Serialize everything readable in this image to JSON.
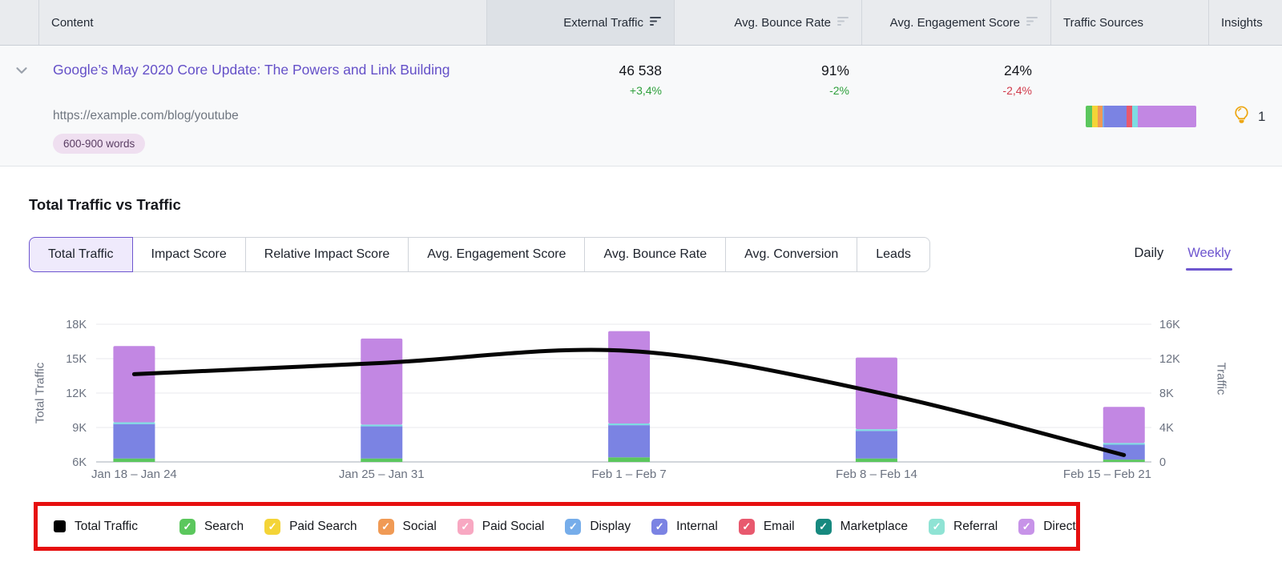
{
  "table": {
    "header": {
      "columns": [
        {
          "label": "Content",
          "align": "left",
          "sort_icon": "none",
          "active": false
        },
        {
          "label": "External Traffic",
          "align": "right",
          "sort_icon": "active",
          "active": true
        },
        {
          "label": "Avg. Bounce Rate",
          "align": "right",
          "sort_icon": "inactive",
          "active": false
        },
        {
          "label": "Avg. Engagement Score",
          "align": "right",
          "sort_icon": "inactive",
          "active": false
        },
        {
          "label": "Traffic Sources",
          "align": "left",
          "sort_icon": "none",
          "active": false
        },
        {
          "label": "Insights",
          "align": "left",
          "sort_icon": "none",
          "active": false
        }
      ]
    },
    "row": {
      "title": "Google’s May 2020 Core Update: The Powers and Link Building",
      "url": "https://example.com/blog/youtube",
      "word_count_badge": "600-900 words",
      "metrics": {
        "external_traffic": {
          "value": "46 538",
          "delta": "+3,4%",
          "delta_color": "#2ea03c"
        },
        "avg_bounce_rate": {
          "value": "91%",
          "delta": "-2%",
          "delta_color": "#2ea03c"
        },
        "avg_engagement_score": {
          "value": "24%",
          "delta": "-2,4%",
          "delta_color": "#d13b4b"
        }
      },
      "traffic_sources_bar": [
        {
          "name": "Search",
          "color": "#5bc75d",
          "pct": 6
        },
        {
          "name": "Paid Search",
          "color": "#f4d437",
          "pct": 5
        },
        {
          "name": "Social",
          "color": "#f09a55",
          "pct": 4.5
        },
        {
          "name": "Display",
          "color": "#76adea",
          "pct": 1.5
        },
        {
          "name": "Internal",
          "color": "#7b83e3",
          "pct": 20
        },
        {
          "name": "Email",
          "color": "#e8596e",
          "pct": 5
        },
        {
          "name": "Referral",
          "color": "#7edce2",
          "pct": 5
        },
        {
          "name": "Direct",
          "color": "#c287e3",
          "pct": 53
        }
      ],
      "insights": {
        "count": "1",
        "icon": "lightbulb-icon",
        "icon_color": "#eda611"
      }
    }
  },
  "chart_section": {
    "title": "Total Traffic vs Traffic",
    "metric_tabs": [
      "Total Traffic",
      "Impact Score",
      "Relative Impact Score",
      "Avg. Engagement Score",
      "Avg. Bounce Rate",
      "Avg. Conversion",
      "Leads"
    ],
    "selected_tab": "Total Traffic",
    "granularity": {
      "options": [
        "Daily",
        "Weekly"
      ],
      "selected": "Weekly"
    },
    "accent_color": "#6e56cf"
  },
  "chart_data": {
    "type": "bar+line",
    "categories": [
      "Jan 18 – Jan 24",
      "Jan 25 – Jan 31",
      "Feb 1 – Feb 7",
      "Feb 8 – Feb 14",
      "Feb 15 – Feb 21"
    ],
    "bar_base_k": 6,
    "stacked_bar_series": [
      {
        "name": "Search",
        "color": "#5bc75d",
        "values_k": [
          0.3,
          0.3,
          0.4,
          0.3,
          0.2
        ]
      },
      {
        "name": "Internal",
        "color": "#7b83e3",
        "values_k": [
          3.0,
          2.8,
          2.8,
          2.4,
          1.3
        ]
      },
      {
        "name": "Referral",
        "color": "#7edce2",
        "values_k": [
          0.15,
          0.15,
          0.15,
          0.15,
          0.15
        ]
      },
      {
        "name": "Direct",
        "color": "#c287e3",
        "values_k": [
          6.65,
          7.5,
          8.05,
          6.25,
          3.15
        ]
      }
    ],
    "bar_totals_k": [
      16.1,
      16.75,
      17.4,
      15.1,
      10.8
    ],
    "line_series": {
      "name": "Total Traffic",
      "axis": "right",
      "color": "#050505",
      "values_k": [
        10.2,
        11.5,
        12.9,
        8.1,
        0.8
      ]
    },
    "left_axis": {
      "label": "Total Traffic",
      "min_k": 6,
      "max_k": 18,
      "ticks": [
        "18K",
        "15K",
        "12K",
        "9K",
        "6K"
      ]
    },
    "right_axis": {
      "label": "Traffic",
      "min_k": 0,
      "max_k": 16,
      "ticks": [
        "16K",
        "12K",
        "8K",
        "4K",
        "0"
      ]
    },
    "grid": true,
    "legend_position": "bottom"
  },
  "legend": {
    "line_item": {
      "label": "Total Traffic",
      "color": "#000000"
    },
    "source_items": [
      {
        "label": "Search",
        "color": "#5bc75d",
        "checked": true
      },
      {
        "label": "Paid Search",
        "color": "#f4d437",
        "checked": true
      },
      {
        "label": "Social",
        "color": "#f09a55",
        "checked": true
      },
      {
        "label": "Paid Social",
        "color": "#f8a8c2",
        "checked": true
      },
      {
        "label": "Display",
        "color": "#76adea",
        "checked": true
      },
      {
        "label": "Internal",
        "color": "#7b83e3",
        "checked": true
      },
      {
        "label": "Email",
        "color": "#e8596e",
        "checked": true
      },
      {
        "label": "Marketplace",
        "color": "#17897f",
        "checked": true
      },
      {
        "label": "Referral",
        "color": "#8fe3d4",
        "checked": true
      },
      {
        "label": "Direct",
        "color": "#c793e8",
        "checked": true
      }
    ],
    "highlight_border_color": "#e60f0f",
    "checkmark": "✓"
  }
}
